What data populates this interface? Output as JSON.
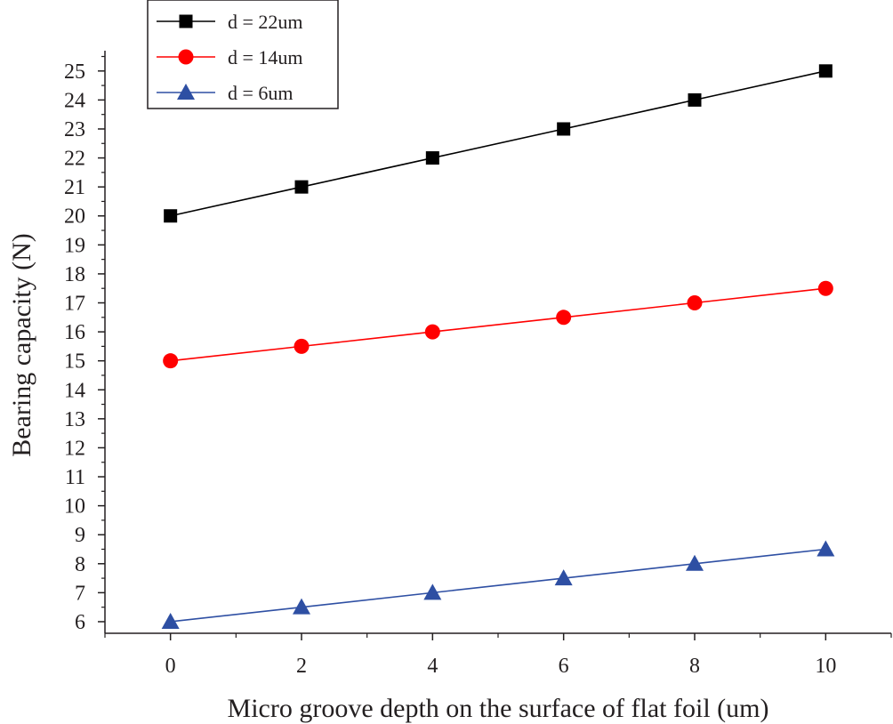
{
  "chart_data": {
    "type": "line",
    "title": "",
    "xlabel": "Micro groove depth on the surface of flat foil (um)",
    "ylabel": "Bearing capacity (N)",
    "xlim": [
      -1,
      11
    ],
    "ylim": [
      5.6,
      25.7
    ],
    "xticks": [
      "0",
      "2",
      "4",
      "6",
      "8",
      "10"
    ],
    "yticks": [
      "6",
      "7",
      "8",
      "9",
      "10",
      "11",
      "12",
      "13",
      "14",
      "15",
      "16",
      "17",
      "18",
      "19",
      "20",
      "21",
      "22",
      "23",
      "24",
      "25"
    ],
    "x": [
      0,
      2,
      4,
      6,
      8,
      10
    ],
    "legend_position": "top-left",
    "series": [
      {
        "name": "d = 22um",
        "marker": "square",
        "color": "#000000",
        "values": [
          20,
          21,
          22,
          23,
          24,
          25
        ]
      },
      {
        "name": "d = 14um",
        "marker": "circle",
        "color": "#ff0000",
        "values": [
          15,
          15.5,
          16,
          16.5,
          17,
          17.5
        ]
      },
      {
        "name": "d = 6um",
        "marker": "triangle",
        "color": "#2e4fa3",
        "values": [
          6,
          6.5,
          7,
          7.5,
          8,
          8.5
        ]
      }
    ]
  }
}
